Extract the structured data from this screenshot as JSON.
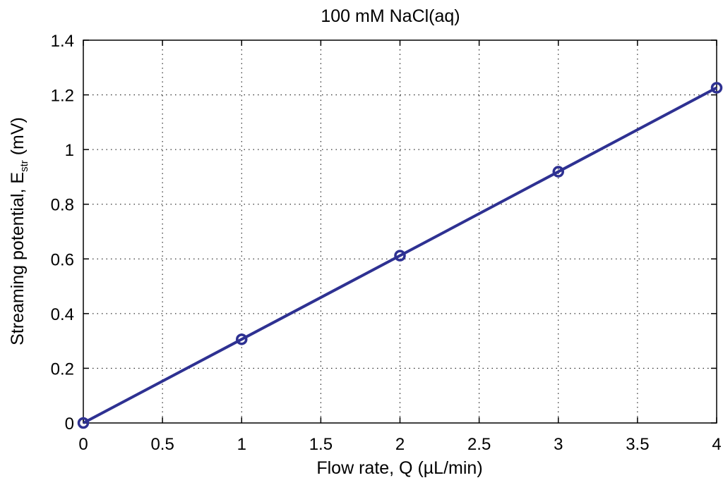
{
  "chart_data": {
    "type": "line",
    "title": "100 mM NaCl(aq)",
    "xlabel": "Flow rate, Q (µL/min)",
    "ylabel": {
      "main": "Streaming potential, E",
      "subscript": "str",
      "unit": " (mV)"
    },
    "xlim": [
      0,
      4
    ],
    "ylim": [
      0,
      1.4
    ],
    "x_ticks": [
      0,
      0.5,
      1,
      1.5,
      2,
      2.5,
      3,
      3.5,
      4
    ],
    "x_tick_labels": [
      "0",
      "0.5",
      "1",
      "1.5",
      "2",
      "2.5",
      "3",
      "3.5",
      "4"
    ],
    "y_ticks": [
      0,
      0.2,
      0.4,
      0.6,
      0.8,
      1,
      1.2,
      1.4
    ],
    "y_tick_labels": [
      "0",
      "0.2",
      "0.4",
      "0.6",
      "0.8",
      "1",
      "1.2",
      "1.4"
    ],
    "grid": true,
    "grid_style": "dotted",
    "series": [
      {
        "x": [
          0,
          1,
          2,
          3,
          4
        ],
        "y": [
          0,
          0.306,
          0.612,
          0.919,
          1.226
        ],
        "color": "#2e3192",
        "marker": "circle-open"
      }
    ]
  }
}
